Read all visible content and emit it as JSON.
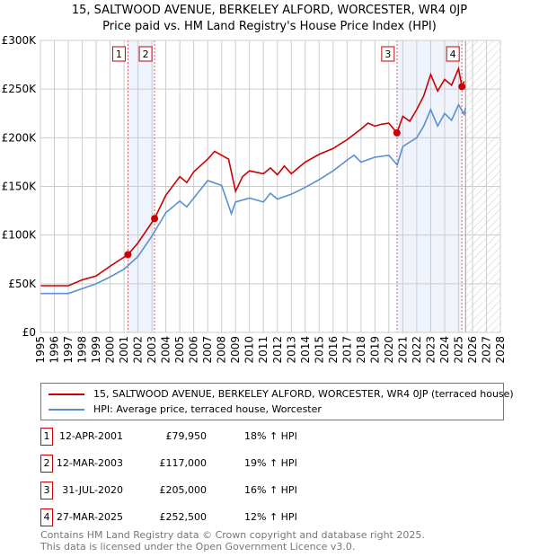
{
  "chart_data": {
    "type": "line",
    "title": "15, SALTWOOD AVENUE, BERKELEY ALFORD, WORCESTER, WR4 0JP",
    "subtitle": "Price paid vs. HM Land Registry's House Price Index (HPI)",
    "xlim": [
      1995,
      2028
    ],
    "ylim": [
      0,
      300000
    ],
    "y_ticks": [
      {
        "v": 0,
        "label": "£0"
      },
      {
        "v": 50000,
        "label": "£50K"
      },
      {
        "v": 100000,
        "label": "£100K"
      },
      {
        "v": 150000,
        "label": "£150K"
      },
      {
        "v": 200000,
        "label": "£200K"
      },
      {
        "v": 250000,
        "label": "£250K"
      },
      {
        "v": 300000,
        "label": "£300K"
      }
    ],
    "x_ticks": [
      "1995",
      "1996",
      "1997",
      "1998",
      "1999",
      "2000",
      "2001",
      "2002",
      "2003",
      "2004",
      "2005",
      "2006",
      "2007",
      "2008",
      "2009",
      "2010",
      "2011",
      "2012",
      "2013",
      "2014",
      "2015",
      "2016",
      "2017",
      "2018",
      "2019",
      "2020",
      "2021",
      "2022",
      "2023",
      "2024",
      "2025",
      "2026",
      "2027",
      "2028"
    ],
    "grid": true,
    "forecast_hatch_from": 2025.5,
    "series": [
      {
        "name": "15, SALTWOOD AVENUE, BERKELEY ALFORD, WORCESTER, WR4 0JP (terraced house)",
        "color": "#cc0000",
        "x": [
          1995,
          1997,
          1998,
          1999,
          2000,
          2001.28,
          2002,
          2003.19,
          2004,
          2005,
          2005.5,
          2006,
          2007,
          2007.5,
          2008,
          2008.5,
          2009,
          2009.5,
          2010,
          2011,
          2011.5,
          2012,
          2012.5,
          2013,
          2013.5,
          2014,
          2015,
          2016,
          2017,
          2018,
          2018.5,
          2019,
          2019.5,
          2020,
          2020.58,
          2021,
          2021.5,
          2022,
          2022.5,
          2023,
          2023.5,
          2024,
          2024.5,
          2025,
          2025.24,
          2025.4
        ],
        "y": [
          48000,
          48000,
          54000,
          58000,
          68000,
          79950,
          92000,
          117000,
          141000,
          160000,
          154000,
          165000,
          178000,
          186000,
          182000,
          178000,
          145000,
          160000,
          166000,
          163000,
          169000,
          162000,
          171000,
          163000,
          169000,
          175000,
          183000,
          189000,
          198000,
          209000,
          215000,
          212000,
          214000,
          215000,
          205000,
          222000,
          217000,
          229000,
          243000,
          265000,
          248000,
          260000,
          254000,
          271000,
          252500,
          258000
        ]
      },
      {
        "name": "HPI: Average price, terraced house, Worcester",
        "color": "#5b8fd0",
        "x": [
          1995,
          1997,
          1998,
          1999,
          2000,
          2001,
          2002,
          2003,
          2004,
          2005,
          2005.5,
          2006,
          2007,
          2008,
          2008.7,
          2009,
          2010,
          2011,
          2011.5,
          2012,
          2013,
          2014,
          2015,
          2016,
          2017,
          2017.5,
          2018,
          2019,
          2020,
          2020.6,
          2021,
          2022,
          2022.5,
          2023,
          2023.5,
          2024,
          2024.5,
          2025,
          2025.4,
          2025.5
        ],
        "y": [
          40000,
          40000,
          45000,
          50000,
          57000,
          65000,
          78000,
          99000,
          123000,
          135000,
          129000,
          138000,
          156000,
          151000,
          122000,
          134000,
          138000,
          134000,
          143000,
          137000,
          142000,
          149000,
          157000,
          166000,
          177000,
          182000,
          175000,
          180000,
          182000,
          172000,
          191000,
          200000,
          212000,
          229000,
          212000,
          225000,
          218000,
          234000,
          224000,
          231000
        ]
      }
    ],
    "sales": [
      {
        "n": "1",
        "x": 2001.28,
        "y": 79950,
        "date": "12-APR-2001",
        "price": "£79,950",
        "hpi": "18% ↑ HPI"
      },
      {
        "n": "2",
        "x": 2003.19,
        "y": 117000,
        "date": "12-MAR-2003",
        "price": "£117,000",
        "hpi": "19% ↑ HPI"
      },
      {
        "n": "3",
        "x": 2020.58,
        "y": 205000,
        "date": "31-JUL-2020",
        "price": "£205,000",
        "hpi": "16% ↑ HPI"
      },
      {
        "n": "4",
        "x": 2025.24,
        "y": 252500,
        "date": "27-MAR-2025",
        "price": "£252,500",
        "hpi": "12% ↑ HPI"
      }
    ],
    "shaded_ranges": [
      [
        2001.28,
        2003.19
      ],
      [
        2020.58,
        2025.24
      ]
    ]
  },
  "footer": {
    "line1": "Contains HM Land Registry data © Crown copyright and database right 2025.",
    "line2": "This data is licensed under the Open Government Licence v3.0."
  }
}
